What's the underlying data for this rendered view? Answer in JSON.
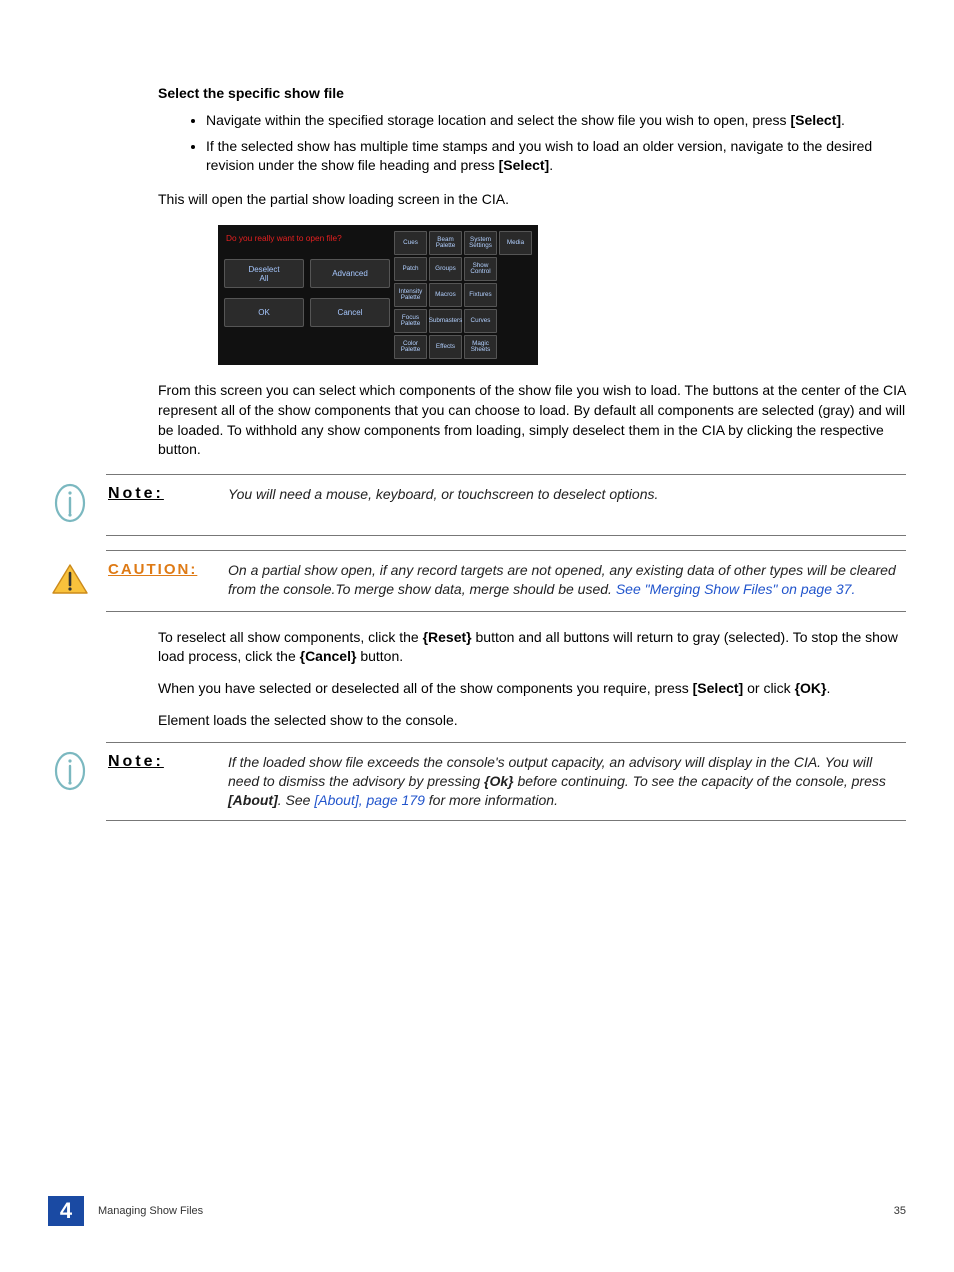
{
  "heading": "Select the specific show file",
  "bullets": [
    {
      "pre": "Navigate within the specified storage location and select the show file you wish to open, press ",
      "bold": "[Select]",
      "post": "."
    },
    {
      "pre": "If the selected show has multiple time stamps and you wish to load an older version, navigate to the desired revision under the show file heading and press ",
      "bold": "[Select]",
      "post": "."
    }
  ],
  "para1": "This will open the partial show loading screen in the CIA.",
  "screenshot": {
    "title": "Do you really want to open file?",
    "left_rows": [
      [
        "Deselect\nAll",
        "Advanced"
      ],
      [
        "OK",
        "Cancel"
      ]
    ],
    "grid": [
      [
        "Cues",
        "Beam Palette",
        "System Settings",
        "Media"
      ],
      [
        "Patch",
        "Groups",
        "Show Control",
        ""
      ],
      [
        "Intensity Palette",
        "Macros",
        "Fixtures",
        ""
      ],
      [
        "Focus Palette",
        "Submasters",
        "Curves",
        ""
      ],
      [
        "Color Palette",
        "Effects",
        "Magic Sheets",
        ""
      ]
    ],
    "colors": {
      "bg": "#111111",
      "cell_bg": "#2a2a2a",
      "cell_border": "#555555",
      "cell_text": "#b2d0ff",
      "title_color": "#e52020",
      "btn_bg": "#2b2b2b",
      "btn_text": "#a7c8ff"
    }
  },
  "para2": "From this screen you can select which components of the show file you wish to load. The buttons at the center of the CIA represent all of the show components that you can choose to load. By default all components are selected (gray) and will be loaded. To withhold any show components from loading, simply deselect them in the CIA by clicking the respective button.",
  "note1": {
    "label": "Note:",
    "text": "You will need a mouse, keyboard, or touchscreen to deselect options."
  },
  "caution": {
    "label": "CAUTION:",
    "text_a": "On a partial show open, if any record targets are not opened, any existing data of other types will be cleared from the console.To merge show data, merge should be used. ",
    "link": "See \"Merging Show Files\" on page 37."
  },
  "para3_a": "To reselect all show components, click the ",
  "para3_b": "{Reset}",
  "para3_c": " button and all buttons will return to gray (selected). To stop the show load process, click the ",
  "para3_d": "{Cancel}",
  "para3_e": " button.",
  "para4_a": "When you have selected or deselected all of the show components you require, press ",
  "para4_b": "[Select]",
  "para4_c": " or click ",
  "para4_d": "{OK}",
  "para4_e": ".",
  "para5": "Element loads the selected show to the console.",
  "note2": {
    "label": "Note:",
    "text_a": "If the loaded show file exceeds the console's output capacity, an advisory will display in the CIA. You will need to dismiss the advisory by pressing ",
    "bold_a": "{Ok}",
    "text_b": " before continuing. To see the capacity of the console, press ",
    "bold_b": "[About]",
    "text_c": ". See ",
    "link": "[About], page 179",
    "text_d": " for more information."
  },
  "footer": {
    "num": "4",
    "title": "Managing Show Files",
    "page": "35"
  },
  "colors": {
    "link": "#2255cc",
    "caution": "#de7a15",
    "footer_block": "#1a4aa3",
    "note_ring": "#7bb8c0",
    "caution_fill": "#f9c23c",
    "caution_border": "#cc8a1a"
  }
}
